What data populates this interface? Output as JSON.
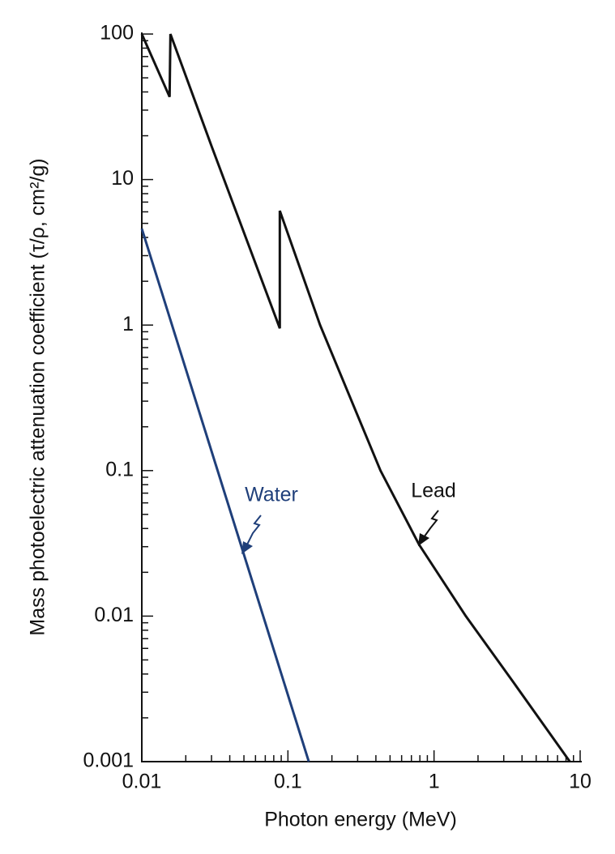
{
  "chart_data": {
    "type": "line",
    "xlabel": "Photon energy (MeV)",
    "ylabel": "Mass photoelectric attenuation coefficient (τ/ρ, cm²/g)",
    "xscale": "log",
    "yscale": "log",
    "xlim": [
      0.01,
      10
    ],
    "ylim": [
      0.001,
      100
    ],
    "xticks": [
      0.01,
      0.1,
      1,
      10
    ],
    "yticks": [
      0.001,
      0.01,
      0.1,
      1,
      10,
      100
    ],
    "xminor": [
      0.02,
      0.03,
      0.04,
      0.05,
      0.06,
      0.07,
      0.08,
      0.09,
      0.2,
      0.3,
      0.4,
      0.5,
      0.6,
      0.7,
      0.8,
      0.9,
      2,
      3,
      4,
      5,
      6,
      7,
      8,
      9
    ],
    "yminor": [
      0.002,
      0.003,
      0.004,
      0.005,
      0.006,
      0.007,
      0.008,
      0.009,
      0.02,
      0.03,
      0.04,
      0.05,
      0.06,
      0.07,
      0.08,
      0.09,
      0.2,
      0.3,
      0.4,
      0.5,
      0.6,
      0.7,
      0.8,
      0.9,
      2,
      3,
      4,
      5,
      6,
      7,
      8,
      9,
      20,
      30,
      40,
      50,
      60,
      70,
      80,
      90
    ],
    "series": [
      {
        "name": "Lead",
        "color": "#111111",
        "x": [
          0.01,
          0.0155,
          0.0157,
          0.03,
          0.088,
          0.088,
          0.166,
          0.43,
          0.79,
          1.65,
          3.5,
          8.5
        ],
        "values": [
          100,
          37,
          100,
          17,
          0.95,
          6.1,
          1,
          0.1,
          0.031,
          0.01,
          0.0035,
          0.001
        ]
      },
      {
        "name": "Water",
        "color": "#1f3f7a",
        "x": [
          0.01,
          0.139
        ],
        "values": [
          4.6,
          0.001
        ]
      }
    ]
  }
}
